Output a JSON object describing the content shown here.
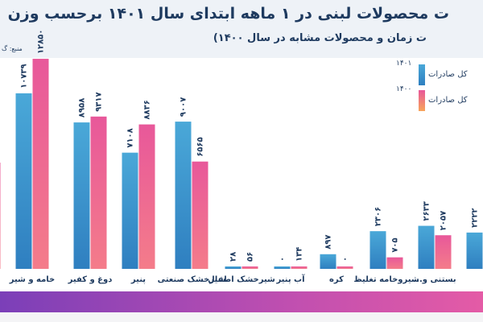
{
  "header": {
    "title": "ت محصولات لبنی در ۱ ماهه ابتدای سال ۱۴۰۱ برحسب وزن",
    "subtitle": "ت زمان و محصولات مشابه در سال ۱۴۰۰)",
    "source": "منبع: گ"
  },
  "legend": [
    {
      "year": "۱۴۰۱",
      "label": "کل صادرات"
    },
    {
      "year": "۱۴۰۰",
      "label": "کل صادرات"
    }
  ],
  "colors": {
    "series_1401_top": "#4aa8d8",
    "series_1401_bottom": "#2f7fc0",
    "series_1400_top": "#e8589a",
    "series_1400_bottom": "#f47c8a",
    "text": "#1e3a5f",
    "background_header": "#eef2f7"
  },
  "chart_data": {
    "type": "bar",
    "categories": [
      "",
      "خامه و شیر",
      "دوغ و کفیر",
      "پنیر",
      "شیرخشک صنعتی",
      "شیرخشک اطفال",
      "آب پنیر",
      "کره",
      "شیروخامه تغلیظ",
      "بستنی و...",
      ""
    ],
    "series": [
      {
        "name": "۱۴۰۱",
        "values": [
          null,
          10739,
          8958,
          7108,
          9007,
          28,
          0,
          897,
          2306,
          2633,
          2222
        ],
        "labels": [
          "",
          "۱۰۷۳۹",
          "۸۹۵۸",
          "۷۱۰۸",
          "۹۰۰۷",
          "۲۸",
          "۰",
          "۸۹۷",
          "۲۳۰۶",
          "۲۶۳۳",
          "۲۲۲۲"
        ]
      },
      {
        "name": "۱۴۰۰",
        "values": [
          6500,
          12850,
          9317,
          8836,
          6565,
          56,
          134,
          0,
          705,
          2057,
          null
        ],
        "labels": [
          "",
          "۱۲۸۵۰",
          "۹۳۱۷",
          "۸۸۳۶",
          "۶۵۶۵",
          "۵۶",
          "۱۳۴",
          "۰",
          "۷۰۵",
          "۲۰۵۷",
          ""
        ]
      }
    ],
    "ylim": [
      0,
      13000
    ],
    "grid": false,
    "legend_position": "top-right",
    "xlabel": "",
    "ylabel": ""
  }
}
